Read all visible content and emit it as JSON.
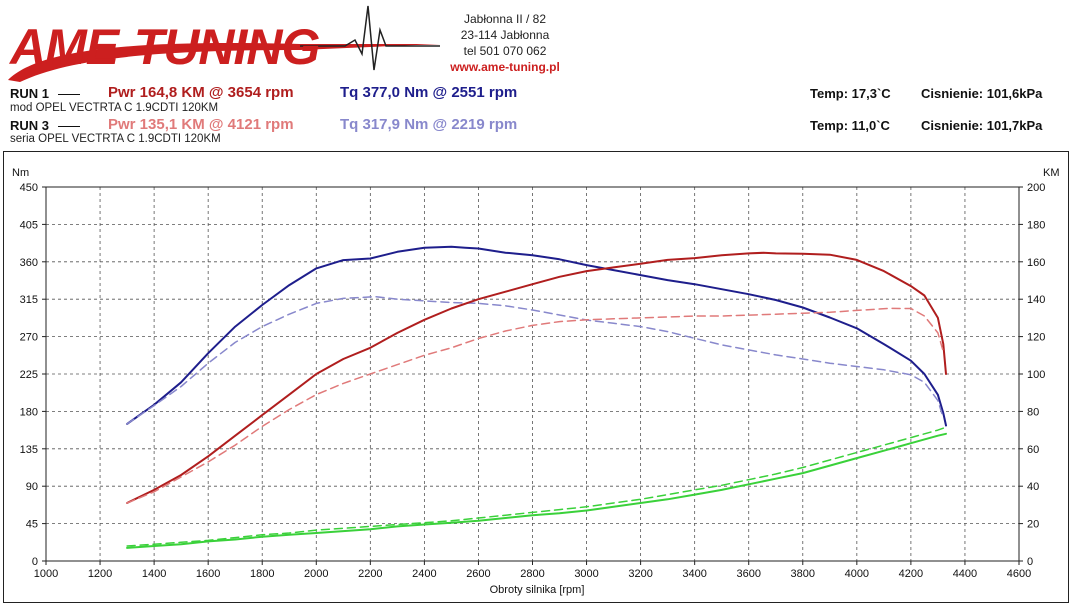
{
  "header": {
    "logo_text": "AME-TUNING",
    "address_lines": [
      "Jabłonna II / 82",
      "23-114 Jabłonna",
      "tel 501 070 062"
    ],
    "website": "www.ame-tuning.pl"
  },
  "runs": [
    {
      "label": "RUN 1",
      "pwr": "Pwr  164,8 KM @ 3654 rpm",
      "tq": "Tq 377,0 Nm @ 2551 rpm",
      "description": "mod OPEL VECTRTA C 1.9CDTI 120KM",
      "temp": "Temp: 17,3`C",
      "pressure": "Cisnienie: 101,6kPa",
      "pwr_color": "#b01e1e",
      "tq_color": "#1e1e8c"
    },
    {
      "label": "RUN 3",
      "pwr": "Pwr  135,1 KM @ 4121 rpm",
      "tq": "Tq 317,9 Nm @ 2219 rpm",
      "description": "seria OPEL VECTRTA C 1.9CDTI 120KM",
      "temp": "Temp: 11,0`C",
      "pressure": "Cisnienie: 101,7kPa",
      "pwr_color": "#e07a7a",
      "tq_color": "#8888cc"
    }
  ],
  "chart_data": {
    "type": "line",
    "xlabel": "Obroty silnika [rpm]",
    "ylabel_left": "Nm",
    "ylabel_right": "KM",
    "xlim": [
      1000,
      4600
    ],
    "ylim_left": [
      0,
      450
    ],
    "ylim_right": [
      0,
      200
    ],
    "x_ticks": [
      1000,
      1200,
      1400,
      1600,
      1800,
      2000,
      2200,
      2400,
      2600,
      2800,
      3000,
      3200,
      3400,
      3600,
      3800,
      4000,
      4200,
      4400,
      4600
    ],
    "y_left_ticks": [
      0,
      45,
      90,
      135,
      180,
      225,
      270,
      315,
      360,
      405,
      450
    ],
    "y_right_ticks": [
      0,
      20,
      40,
      60,
      80,
      100,
      120,
      140,
      160,
      180,
      200
    ],
    "grid": true,
    "series": [
      {
        "axis": "left",
        "style": "solid",
        "color": "#1e1e8c",
        "points": [
          [
            1300,
            165
          ],
          [
            1400,
            188
          ],
          [
            1500,
            215
          ],
          [
            1600,
            250
          ],
          [
            1700,
            282
          ],
          [
            1800,
            308
          ],
          [
            1900,
            332
          ],
          [
            2000,
            352
          ],
          [
            2100,
            362
          ],
          [
            2200,
            364
          ],
          [
            2300,
            372
          ],
          [
            2400,
            377
          ],
          [
            2500,
            378
          ],
          [
            2551,
            377
          ],
          [
            2600,
            376
          ],
          [
            2700,
            371
          ],
          [
            2800,
            368
          ],
          [
            2900,
            363
          ],
          [
            3000,
            356
          ],
          [
            3100,
            350
          ],
          [
            3200,
            344
          ],
          [
            3300,
            338
          ],
          [
            3400,
            333
          ],
          [
            3500,
            327
          ],
          [
            3600,
            321
          ],
          [
            3700,
            314
          ],
          [
            3800,
            305
          ],
          [
            3900,
            293
          ],
          [
            4000,
            280
          ],
          [
            4100,
            261
          ],
          [
            4200,
            241
          ],
          [
            4250,
            225
          ],
          [
            4300,
            200
          ],
          [
            4320,
            178
          ],
          [
            4330,
            163
          ]
        ]
      },
      {
        "axis": "left",
        "style": "dashed",
        "color": "#8888cc",
        "points": [
          [
            1300,
            165
          ],
          [
            1400,
            187
          ],
          [
            1500,
            210
          ],
          [
            1600,
            238
          ],
          [
            1700,
            263
          ],
          [
            1800,
            282
          ],
          [
            1900,
            297
          ],
          [
            2000,
            310
          ],
          [
            2100,
            316
          ],
          [
            2219,
            318
          ],
          [
            2300,
            315
          ],
          [
            2400,
            313
          ],
          [
            2500,
            311
          ],
          [
            2600,
            310
          ],
          [
            2700,
            307
          ],
          [
            2800,
            302
          ],
          [
            2900,
            296
          ],
          [
            3000,
            290
          ],
          [
            3100,
            286
          ],
          [
            3200,
            282
          ],
          [
            3300,
            276
          ],
          [
            3400,
            268
          ],
          [
            3500,
            260
          ],
          [
            3600,
            254
          ],
          [
            3700,
            248
          ],
          [
            3800,
            243
          ],
          [
            3900,
            238
          ],
          [
            4000,
            234
          ],
          [
            4100,
            230
          ],
          [
            4200,
            224
          ],
          [
            4250,
            215
          ],
          [
            4300,
            193
          ],
          [
            4320,
            172
          ]
        ]
      },
      {
        "axis": "right",
        "style": "solid",
        "color": "#b01e1e",
        "points": [
          [
            1300,
            31
          ],
          [
            1400,
            38
          ],
          [
            1500,
            46
          ],
          [
            1600,
            56
          ],
          [
            1700,
            67
          ],
          [
            1800,
            78
          ],
          [
            1900,
            89
          ],
          [
            2000,
            100
          ],
          [
            2100,
            108
          ],
          [
            2200,
            114
          ],
          [
            2300,
            122
          ],
          [
            2400,
            129
          ],
          [
            2500,
            135
          ],
          [
            2600,
            140
          ],
          [
            2700,
            144
          ],
          [
            2800,
            148
          ],
          [
            2900,
            152
          ],
          [
            3000,
            155
          ],
          [
            3100,
            157
          ],
          [
            3200,
            159
          ],
          [
            3300,
            161
          ],
          [
            3400,
            162
          ],
          [
            3500,
            163.5
          ],
          [
            3600,
            164.5
          ],
          [
            3654,
            164.8
          ],
          [
            3700,
            164.5
          ],
          [
            3800,
            164.3
          ],
          [
            3900,
            163.8
          ],
          [
            4000,
            161
          ],
          [
            4100,
            155
          ],
          [
            4200,
            147
          ],
          [
            4250,
            142
          ],
          [
            4300,
            130
          ],
          [
            4320,
            116
          ],
          [
            4330,
            100
          ]
        ]
      },
      {
        "axis": "right",
        "style": "dashed",
        "color": "#e07a7a",
        "points": [
          [
            1300,
            31
          ],
          [
            1400,
            37
          ],
          [
            1500,
            45
          ],
          [
            1600,
            53
          ],
          [
            1700,
            62
          ],
          [
            1800,
            72
          ],
          [
            1900,
            81
          ],
          [
            2000,
            89
          ],
          [
            2100,
            95
          ],
          [
            2200,
            100
          ],
          [
            2300,
            105
          ],
          [
            2400,
            110
          ],
          [
            2500,
            114
          ],
          [
            2600,
            119
          ],
          [
            2700,
            123
          ],
          [
            2800,
            126
          ],
          [
            2900,
            128
          ],
          [
            3000,
            129
          ],
          [
            3100,
            129.5
          ],
          [
            3200,
            130
          ],
          [
            3300,
            130.5
          ],
          [
            3400,
            131
          ],
          [
            3500,
            131
          ],
          [
            3600,
            131.5
          ],
          [
            3700,
            132
          ],
          [
            3800,
            132.5
          ],
          [
            3900,
            133
          ],
          [
            4000,
            134
          ],
          [
            4121,
            135.1
          ],
          [
            4200,
            135
          ],
          [
            4250,
            131
          ],
          [
            4300,
            122
          ],
          [
            4320,
            112
          ]
        ]
      },
      {
        "axis": "right",
        "style": "solid",
        "color": "#3ad13a",
        "points": [
          [
            1300,
            7
          ],
          [
            1400,
            8
          ],
          [
            1500,
            9
          ],
          [
            1600,
            10.5
          ],
          [
            1700,
            11.5
          ],
          [
            1800,
            13
          ],
          [
            1900,
            14
          ],
          [
            2000,
            15
          ],
          [
            2100,
            16
          ],
          [
            2200,
            17
          ],
          [
            2300,
            18.5
          ],
          [
            2400,
            19.5
          ],
          [
            2500,
            20.5
          ],
          [
            2600,
            21.5
          ],
          [
            2700,
            23
          ],
          [
            2800,
            24.5
          ],
          [
            2900,
            25.5
          ],
          [
            3000,
            27
          ],
          [
            3100,
            29
          ],
          [
            3200,
            31
          ],
          [
            3300,
            33
          ],
          [
            3400,
            35.5
          ],
          [
            3500,
            38
          ],
          [
            3600,
            41
          ],
          [
            3700,
            44
          ],
          [
            3800,
            47
          ],
          [
            3900,
            51
          ],
          [
            4000,
            55
          ],
          [
            4100,
            59
          ],
          [
            4200,
            63
          ],
          [
            4300,
            67
          ],
          [
            4330,
            68
          ]
        ]
      },
      {
        "axis": "right",
        "style": "dashed",
        "color": "#3ad13a",
        "points": [
          [
            1300,
            8
          ],
          [
            1400,
            9
          ],
          [
            1500,
            10
          ],
          [
            1600,
            11
          ],
          [
            1700,
            12.5
          ],
          [
            1800,
            14
          ],
          [
            1900,
            15
          ],
          [
            2000,
            16.5
          ],
          [
            2100,
            17.5
          ],
          [
            2200,
            18.5
          ],
          [
            2300,
            19.5
          ],
          [
            2400,
            20.5
          ],
          [
            2500,
            21.5
          ],
          [
            2600,
            23
          ],
          [
            2700,
            24.5
          ],
          [
            2800,
            26
          ],
          [
            2900,
            27.5
          ],
          [
            3000,
            29
          ],
          [
            3100,
            31
          ],
          [
            3200,
            33
          ],
          [
            3300,
            35.5
          ],
          [
            3400,
            38
          ],
          [
            3500,
            40.5
          ],
          [
            3600,
            43.5
          ],
          [
            3700,
            46.5
          ],
          [
            3800,
            50
          ],
          [
            3900,
            54
          ],
          [
            4000,
            58
          ],
          [
            4100,
            62
          ],
          [
            4200,
            66
          ],
          [
            4300,
            70
          ],
          [
            4320,
            71
          ]
        ]
      }
    ]
  }
}
